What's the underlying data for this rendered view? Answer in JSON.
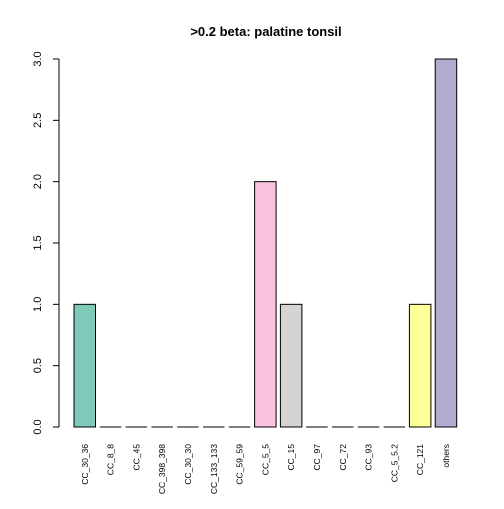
{
  "chart_data": {
    "type": "bar",
    "title": ">0.2 beta:  palatine tonsil",
    "xlabel": "",
    "ylabel": "",
    "ylim": [
      0,
      3
    ],
    "yticks": [
      "0.0",
      "0.5",
      "1.0",
      "1.5",
      "2.0",
      "2.5",
      "3.0"
    ],
    "grid": false,
    "categories": [
      "CC_30_36",
      "CC_8_8",
      "CC_45",
      "CC_398_398",
      "CC_30_30",
      "CC_133_133",
      "CC_59_59",
      "CC_5_5",
      "CC_15",
      "CC_97",
      "CC_72",
      "CC_93",
      "CC_5_5.2",
      "CC_121",
      "others"
    ],
    "values": [
      1,
      0,
      0,
      0,
      0,
      0,
      0,
      2,
      1,
      0,
      0,
      0,
      0,
      1,
      3
    ],
    "colors": [
      "#7fc9b8",
      "#7fc9b8",
      "#7fc9b8",
      "#7fc9b8",
      "#7fc9b8",
      "#7fc9b8",
      "#7fc9b8",
      "#f9c3de",
      "#d4d4d4",
      "#d4d4d4",
      "#d4d4d4",
      "#d4d4d4",
      "#d4d4d4",
      "#ffff99",
      "#b1abd0"
    ]
  }
}
